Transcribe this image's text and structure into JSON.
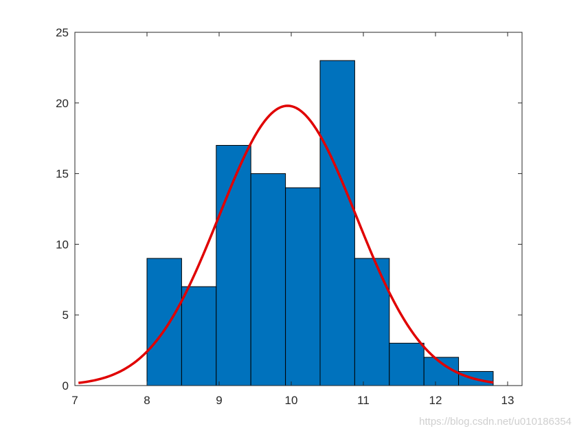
{
  "chart_data": {
    "type": "bar",
    "title": "",
    "xlabel": "",
    "ylabel": "",
    "xlim": [
      7,
      13.2
    ],
    "ylim": [
      0,
      25
    ],
    "x_ticks": [
      7,
      8,
      9,
      10,
      11,
      12,
      13
    ],
    "y_ticks": [
      0,
      5,
      10,
      15,
      20,
      25
    ],
    "bin_edges": [
      8.0,
      8.48,
      8.96,
      9.44,
      9.92,
      10.4,
      10.88,
      11.36,
      11.84,
      12.32,
      12.8
    ],
    "counts": [
      9,
      7,
      17,
      15,
      14,
      23,
      9,
      3,
      2,
      1
    ],
    "bar_color": "#0072BD",
    "fit_curve": {
      "type": "normal",
      "mean": 9.95,
      "peak": 19.8,
      "sigma": 0.95,
      "x_range": [
        7.05,
        12.8
      ],
      "color": "#E00000"
    },
    "grid": false,
    "legend": "none"
  },
  "watermark": "https://blog.csdn.net/u010186354"
}
